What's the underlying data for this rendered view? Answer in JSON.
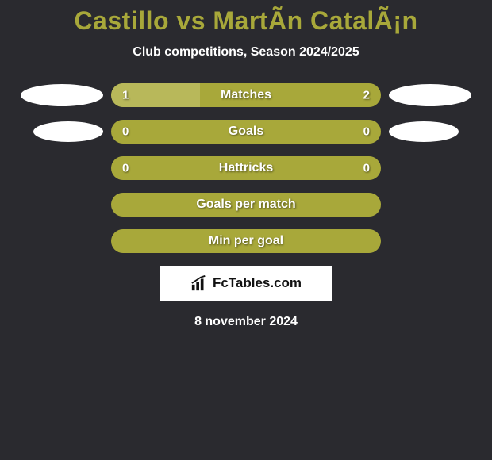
{
  "title": "Castillo vs MartÃ­n CatalÃ¡n",
  "subtitle": "Club competitions, Season 2024/2025",
  "colors": {
    "background": "#2a2a2f",
    "accent": "#a8a83a",
    "bar_fill": "#b8b85a",
    "text_white": "#ffffff",
    "bubble": "#ffffff"
  },
  "bars": [
    {
      "label": "Matches",
      "left": "1",
      "right": "2",
      "fill_pct": 33,
      "show_bubbles": "large"
    },
    {
      "label": "Goals",
      "left": "0",
      "right": "0",
      "fill_pct": 0,
      "show_bubbles": "small"
    },
    {
      "label": "Hattricks",
      "left": "0",
      "right": "0",
      "fill_pct": 0,
      "show_bubbles": "none"
    },
    {
      "label": "Goals per match",
      "left": "",
      "right": "",
      "fill_pct": 0,
      "show_bubbles": "none"
    },
    {
      "label": "Min per goal",
      "left": "",
      "right": "",
      "fill_pct": 0,
      "show_bubbles": "none"
    }
  ],
  "branding": "FcTables.com",
  "date": "8 november 2024"
}
